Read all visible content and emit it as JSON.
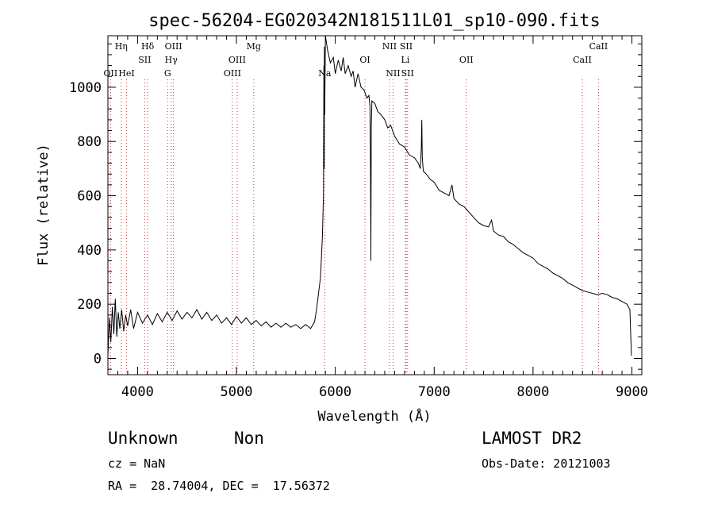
{
  "chart_data": {
    "type": "line",
    "title": "spec-56204-EG020342N181511L01_sp10-090.fits",
    "xlabel": "Wavelength (Å)",
    "ylabel": "Flux (relative)",
    "xlim": [
      3700,
      9100
    ],
    "ylim": [
      -60,
      1190
    ],
    "x_ticks": [
      "4000",
      "5000",
      "6000",
      "7000",
      "8000",
      "9000"
    ],
    "y_ticks": [
      "0",
      "200",
      "400",
      "600",
      "800",
      "1000"
    ],
    "x_tick_values": [
      4000,
      5000,
      6000,
      7000,
      8000,
      9000
    ],
    "y_tick_values": [
      0,
      200,
      400,
      600,
      800,
      1000
    ],
    "grid": false,
    "series": [
      {
        "color": "#000000",
        "points": [
          [
            3700,
            10
          ],
          [
            3715,
            150
          ],
          [
            3730,
            60
          ],
          [
            3745,
            190
          ],
          [
            3760,
            90
          ],
          [
            3775,
            220
          ],
          [
            3790,
            80
          ],
          [
            3805,
            170
          ],
          [
            3820,
            110
          ],
          [
            3840,
            180
          ],
          [
            3860,
            100
          ],
          [
            3880,
            160
          ],
          [
            3900,
            120
          ],
          [
            3930,
            180
          ],
          [
            3960,
            110
          ],
          [
            4000,
            170
          ],
          [
            4050,
            130
          ],
          [
            4100,
            160
          ],
          [
            4150,
            125
          ],
          [
            4200,
            165
          ],
          [
            4250,
            135
          ],
          [
            4300,
            170
          ],
          [
            4350,
            140
          ],
          [
            4400,
            175
          ],
          [
            4450,
            145
          ],
          [
            4500,
            170
          ],
          [
            4550,
            150
          ],
          [
            4600,
            180
          ],
          [
            4650,
            145
          ],
          [
            4700,
            170
          ],
          [
            4750,
            140
          ],
          [
            4800,
            160
          ],
          [
            4850,
            130
          ],
          [
            4900,
            150
          ],
          [
            4950,
            125
          ],
          [
            5000,
            155
          ],
          [
            5050,
            130
          ],
          [
            5100,
            150
          ],
          [
            5150,
            125
          ],
          [
            5200,
            140
          ],
          [
            5250,
            120
          ],
          [
            5300,
            135
          ],
          [
            5350,
            115
          ],
          [
            5400,
            130
          ],
          [
            5450,
            115
          ],
          [
            5500,
            130
          ],
          [
            5550,
            115
          ],
          [
            5600,
            125
          ],
          [
            5650,
            110
          ],
          [
            5700,
            125
          ],
          [
            5750,
            110
          ],
          [
            5790,
            135
          ],
          [
            5810,
            180
          ],
          [
            5830,
            240
          ],
          [
            5850,
            300
          ],
          [
            5870,
            450
          ],
          [
            5880,
            600
          ],
          [
            5885,
            1080
          ],
          [
            5888,
            700
          ],
          [
            5890,
            1150
          ],
          [
            5893,
            900
          ],
          [
            5900,
            1190
          ],
          [
            5920,
            1140
          ],
          [
            5950,
            1090
          ],
          [
            5980,
            1110
          ],
          [
            6000,
            1050
          ],
          [
            6030,
            1100
          ],
          [
            6060,
            1060
          ],
          [
            6080,
            1110
          ],
          [
            6100,
            1050
          ],
          [
            6130,
            1080
          ],
          [
            6160,
            1040
          ],
          [
            6180,
            1060
          ],
          [
            6200,
            1000
          ],
          [
            6230,
            1050
          ],
          [
            6260,
            1000
          ],
          [
            6290,
            990
          ],
          [
            6320,
            960
          ],
          [
            6340,
            970
          ],
          [
            6350,
            930
          ],
          [
            6356,
            700
          ],
          [
            6360,
            360
          ],
          [
            6364,
            850
          ],
          [
            6370,
            950
          ],
          [
            6400,
            940
          ],
          [
            6430,
            910
          ],
          [
            6460,
            900
          ],
          [
            6500,
            880
          ],
          [
            6530,
            850
          ],
          [
            6560,
            860
          ],
          [
            6600,
            820
          ],
          [
            6650,
            790
          ],
          [
            6700,
            780
          ],
          [
            6750,
            750
          ],
          [
            6800,
            740
          ],
          [
            6840,
            720
          ],
          [
            6860,
            700
          ],
          [
            6870,
            780
          ],
          [
            6875,
            880
          ],
          [
            6880,
            740
          ],
          [
            6890,
            690
          ],
          [
            6920,
            680
          ],
          [
            6960,
            660
          ],
          [
            7000,
            650
          ],
          [
            7050,
            620
          ],
          [
            7100,
            610
          ],
          [
            7150,
            600
          ],
          [
            7180,
            640
          ],
          [
            7200,
            590
          ],
          [
            7250,
            570
          ],
          [
            7300,
            560
          ],
          [
            7350,
            540
          ],
          [
            7400,
            520
          ],
          [
            7450,
            500
          ],
          [
            7500,
            490
          ],
          [
            7550,
            485
          ],
          [
            7580,
            510
          ],
          [
            7600,
            470
          ],
          [
            7650,
            455
          ],
          [
            7700,
            450
          ],
          [
            7750,
            430
          ],
          [
            7800,
            420
          ],
          [
            7850,
            405
          ],
          [
            7900,
            390
          ],
          [
            7950,
            380
          ],
          [
            8000,
            370
          ],
          [
            8050,
            350
          ],
          [
            8100,
            340
          ],
          [
            8150,
            330
          ],
          [
            8200,
            315
          ],
          [
            8250,
            305
          ],
          [
            8300,
            295
          ],
          [
            8350,
            280
          ],
          [
            8400,
            270
          ],
          [
            8450,
            260
          ],
          [
            8500,
            250
          ],
          [
            8550,
            245
          ],
          [
            8600,
            240
          ],
          [
            8650,
            235
          ],
          [
            8700,
            240
          ],
          [
            8750,
            235
          ],
          [
            8800,
            225
          ],
          [
            8850,
            220
          ],
          [
            8900,
            210
          ],
          [
            8950,
            200
          ],
          [
            8980,
            180
          ],
          [
            8995,
            10
          ]
        ]
      }
    ],
    "lines": [
      {
        "x": 3727,
        "color": "#cc3333",
        "label": "OII",
        "row": 2
      },
      {
        "x": 3835,
        "color": "#cc3333",
        "label": "Hη",
        "row": 0
      },
      {
        "x": 3889,
        "color": "#cc3333",
        "label": "HeI",
        "row": 2
      },
      {
        "x": 4072,
        "color": "#cc3333",
        "label": "SII",
        "row": 1
      },
      {
        "x": 4102,
        "color": "#cc3333",
        "label": "Hδ",
        "row": 0
      },
      {
        "x": 4304,
        "color": "#cc3333",
        "label": "G",
        "row": 2
      },
      {
        "x": 4340,
        "color": "#cc3333",
        "label": "Hγ",
        "row": 1
      },
      {
        "x": 4363,
        "color": "#cc3333",
        "label": "OIII",
        "row": 0
      },
      {
        "x": 4959,
        "color": "#cc3333",
        "label": "OIII",
        "row": 2
      },
      {
        "x": 5007,
        "color": "#cc3333",
        "label": "OIII",
        "row": 1
      },
      {
        "x": 5175,
        "color": "#cc3333",
        "label": "Mg",
        "row": 0
      },
      {
        "x": 5893,
        "color": "#cc3333",
        "label": "Na",
        "row": 2
      },
      {
        "x": 6300,
        "color": "#cc3333",
        "label": "OI",
        "row": 1
      },
      {
        "x": 6548,
        "color": "#cc3333",
        "label": "NII",
        "row": 0
      },
      {
        "x": 6584,
        "color": "#cc3333",
        "label": "NII",
        "row": 2
      },
      {
        "x": 6708,
        "color": "#cc3333",
        "label": "Li",
        "row": 1
      },
      {
        "x": 6717,
        "color": "#cc3333",
        "label": "SII",
        "row": 0
      },
      {
        "x": 6731,
        "color": "#cc3333",
        "label": "SII",
        "row": 2
      },
      {
        "x": 7325,
        "color": "#cc3333",
        "label": "OII",
        "row": 1
      },
      {
        "x": 8498,
        "color": "#cc3333",
        "label": "CaII",
        "row": 1
      },
      {
        "x": 8662,
        "color": "#cc3333",
        "label": "CaII",
        "row": 0
      }
    ]
  },
  "info": {
    "class": "Unknown",
    "subclass": "Non",
    "survey": "LAMOST DR2",
    "cz": "cz = NaN",
    "obs_date": "Obs-Date: 20121003",
    "radec": "RA =  28.74004, DEC =  17.56372"
  }
}
